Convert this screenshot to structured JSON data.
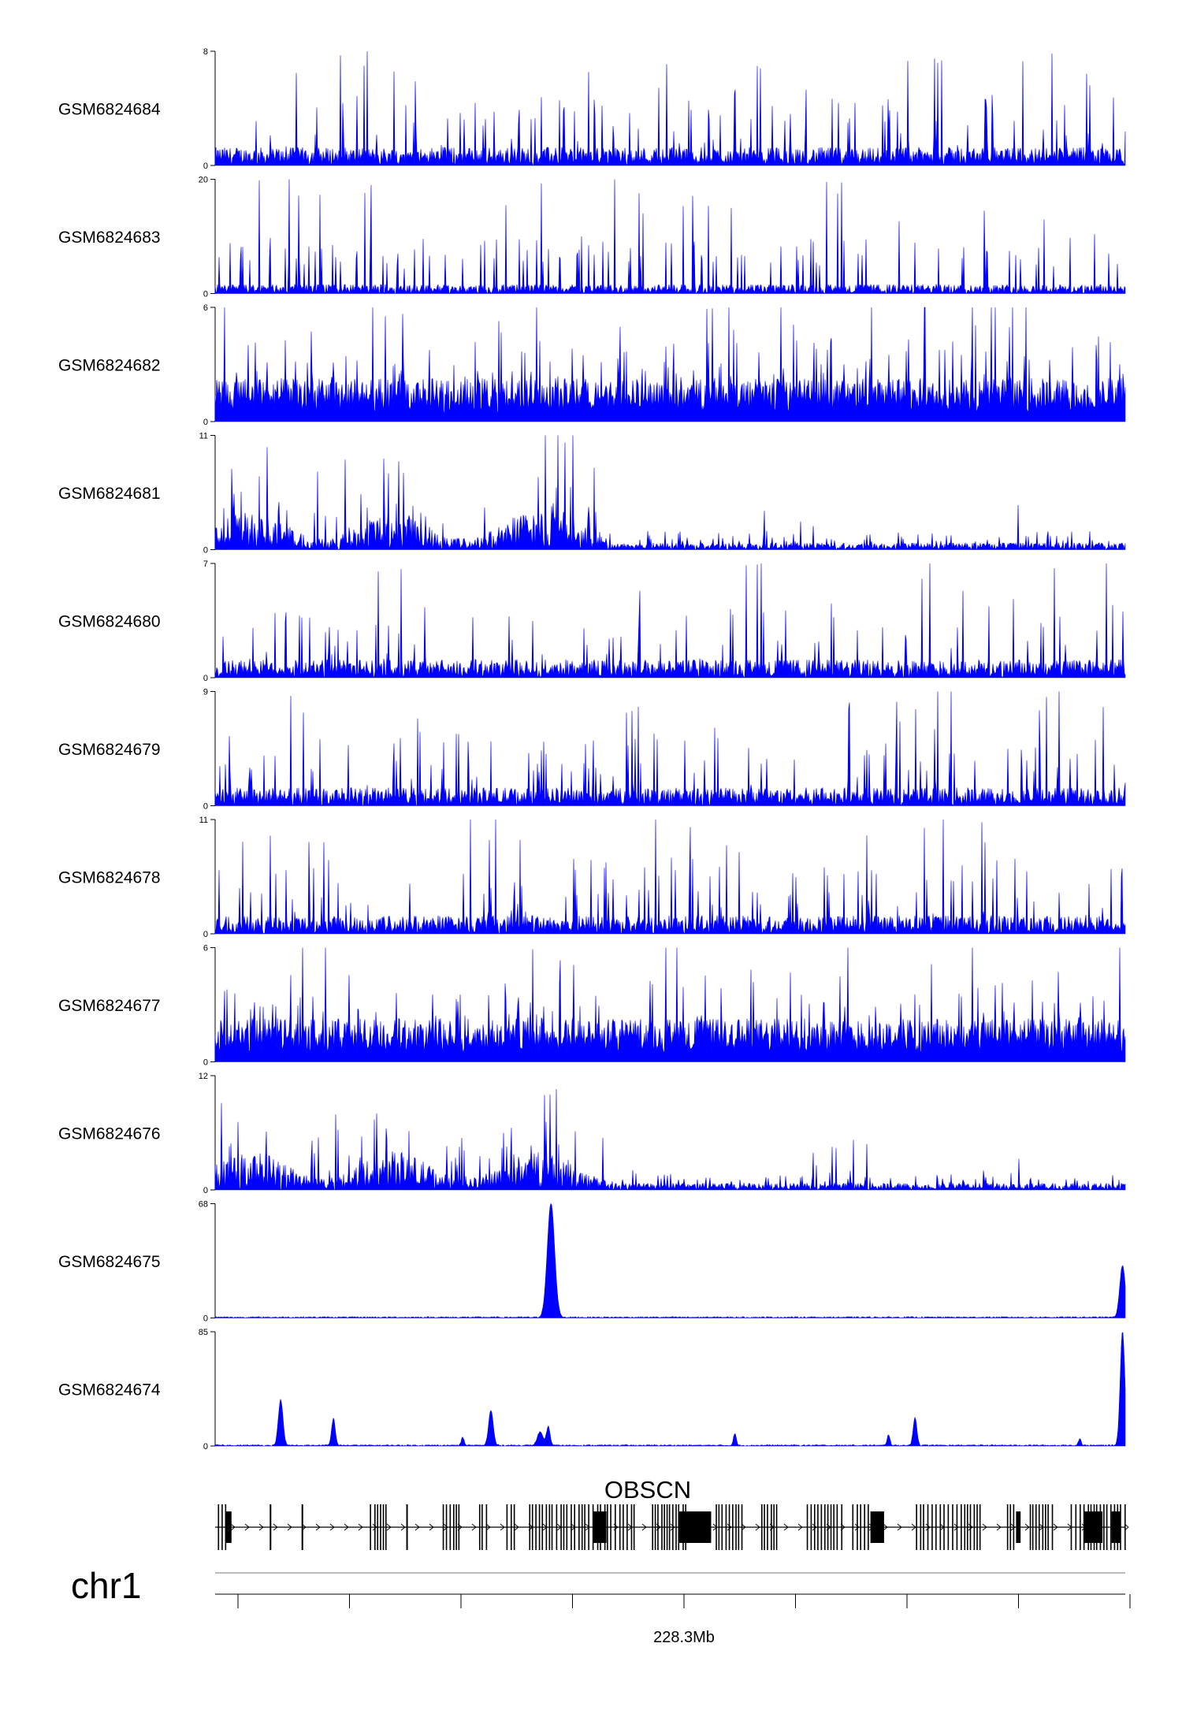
{
  "colors": {
    "signal": "#0000ff",
    "axis": "#000000",
    "gene": "#000000",
    "background": "#ffffff"
  },
  "chart_data": {
    "type": "area",
    "description_source": "genome browser coverage tracks",
    "chromosome": "chr1",
    "gene": {
      "name": "OBSCN",
      "strand": "+"
    },
    "x_axis": {
      "tick_label": "228.3Mb",
      "major_ticks": 9
    },
    "tracks": [
      {
        "name": "GSM6824684",
        "ymax": 8,
        "ymin": 0,
        "profile": "noisy_sparse"
      },
      {
        "name": "GSM6824683",
        "ymax": 20,
        "ymin": 0,
        "profile": "noisy_triangles"
      },
      {
        "name": "GSM6824682",
        "ymax": 6,
        "ymin": 0,
        "profile": "noisy_dense"
      },
      {
        "name": "GSM6824681",
        "ymax": 11,
        "ymin": 0,
        "profile": "left_heavy"
      },
      {
        "name": "GSM6824680",
        "ymax": 7,
        "ymin": 0,
        "profile": "noisy_sparse"
      },
      {
        "name": "GSM6824679",
        "ymax": 9,
        "ymin": 0,
        "profile": "noisy_sparse"
      },
      {
        "name": "GSM6824678",
        "ymax": 11,
        "ymin": 0,
        "profile": "noisy_sparse"
      },
      {
        "name": "GSM6824677",
        "ymax": 6,
        "ymin": 0,
        "profile": "noisy_dense"
      },
      {
        "name": "GSM6824676",
        "ymax": 12,
        "ymin": 0,
        "profile": "left_heavy"
      },
      {
        "name": "GSM6824675",
        "ymax": 68,
        "ymin": 0,
        "profile": "peaks",
        "peaks": [
          {
            "pos": 0.369,
            "height": 68,
            "width": 0.004
          },
          {
            "pos": 0.997,
            "height": 31,
            "width": 0.003
          }
        ]
      },
      {
        "name": "GSM6824674",
        "ymax": 85,
        "ymin": 0,
        "profile": "peaks",
        "peaks": [
          {
            "pos": 0.072,
            "height": 34,
            "width": 0.0025
          },
          {
            "pos": 0.13,
            "height": 20,
            "width": 0.002
          },
          {
            "pos": 0.272,
            "height": 6,
            "width": 0.0015
          },
          {
            "pos": 0.303,
            "height": 26,
            "width": 0.0025
          },
          {
            "pos": 0.357,
            "height": 10,
            "width": 0.003
          },
          {
            "pos": 0.366,
            "height": 14,
            "width": 0.002
          },
          {
            "pos": 0.571,
            "height": 9,
            "width": 0.0015
          },
          {
            "pos": 0.74,
            "height": 8,
            "width": 0.0015
          },
          {
            "pos": 0.769,
            "height": 21,
            "width": 0.002
          },
          {
            "pos": 0.95,
            "height": 5,
            "width": 0.0015
          },
          {
            "pos": 0.997,
            "height": 85,
            "width": 0.0025
          }
        ]
      }
    ]
  }
}
